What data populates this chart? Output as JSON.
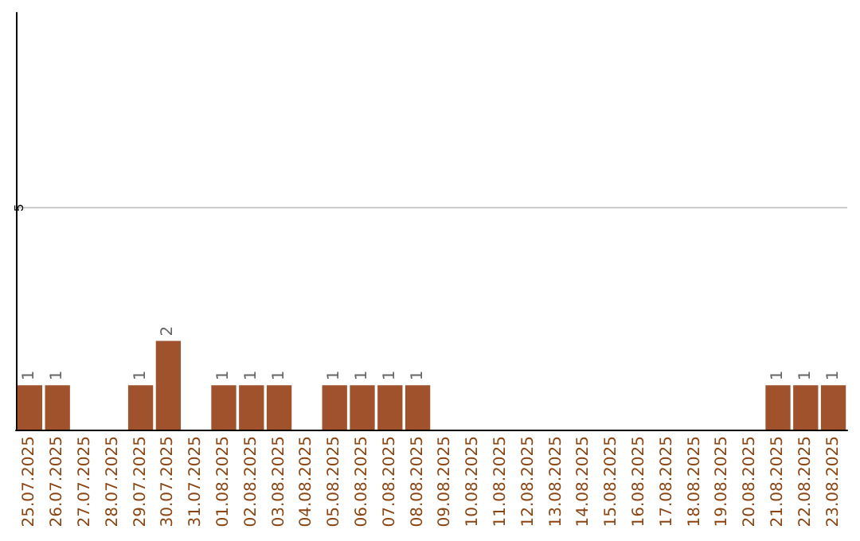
{
  "chart_data": {
    "type": "bar",
    "categories": [
      "25.07.2025",
      "26.07.2025",
      "27.07.2025",
      "28.07.2025",
      "29.07.2025",
      "30.07.2025",
      "31.07.2025",
      "01.08.2025",
      "02.08.2025",
      "03.08.2025",
      "04.08.2025",
      "05.08.2025",
      "06.08.2025",
      "07.08.2025",
      "08.08.2025",
      "09.08.2025",
      "10.08.2025",
      "11.08.2025",
      "12.08.2025",
      "13.08.2025",
      "14.08.2025",
      "15.08.2025",
      "16.08.2025",
      "17.08.2025",
      "18.08.2025",
      "19.08.2025",
      "20.08.2025",
      "21.08.2025",
      "22.08.2025",
      "23.08.2025"
    ],
    "values": [
      1,
      1,
      0,
      0,
      1,
      2,
      0,
      1,
      1,
      1,
      0,
      1,
      1,
      1,
      1,
      0,
      0,
      0,
      0,
      0,
      0,
      0,
      0,
      0,
      0,
      0,
      0,
      1,
      1,
      1
    ],
    "value_labels": [
      "1",
      "1",
      null,
      null,
      "1",
      "2",
      null,
      "1",
      "1",
      "1",
      null,
      "1",
      "1",
      "1",
      "1",
      null,
      null,
      null,
      null,
      null,
      null,
      null,
      null,
      null,
      null,
      null,
      null,
      "1",
      "1",
      "1"
    ],
    "color": "#a0522d",
    "ylim": [
      0,
      9.4
    ],
    "yticks": [
      5
    ],
    "grid": "y"
  }
}
